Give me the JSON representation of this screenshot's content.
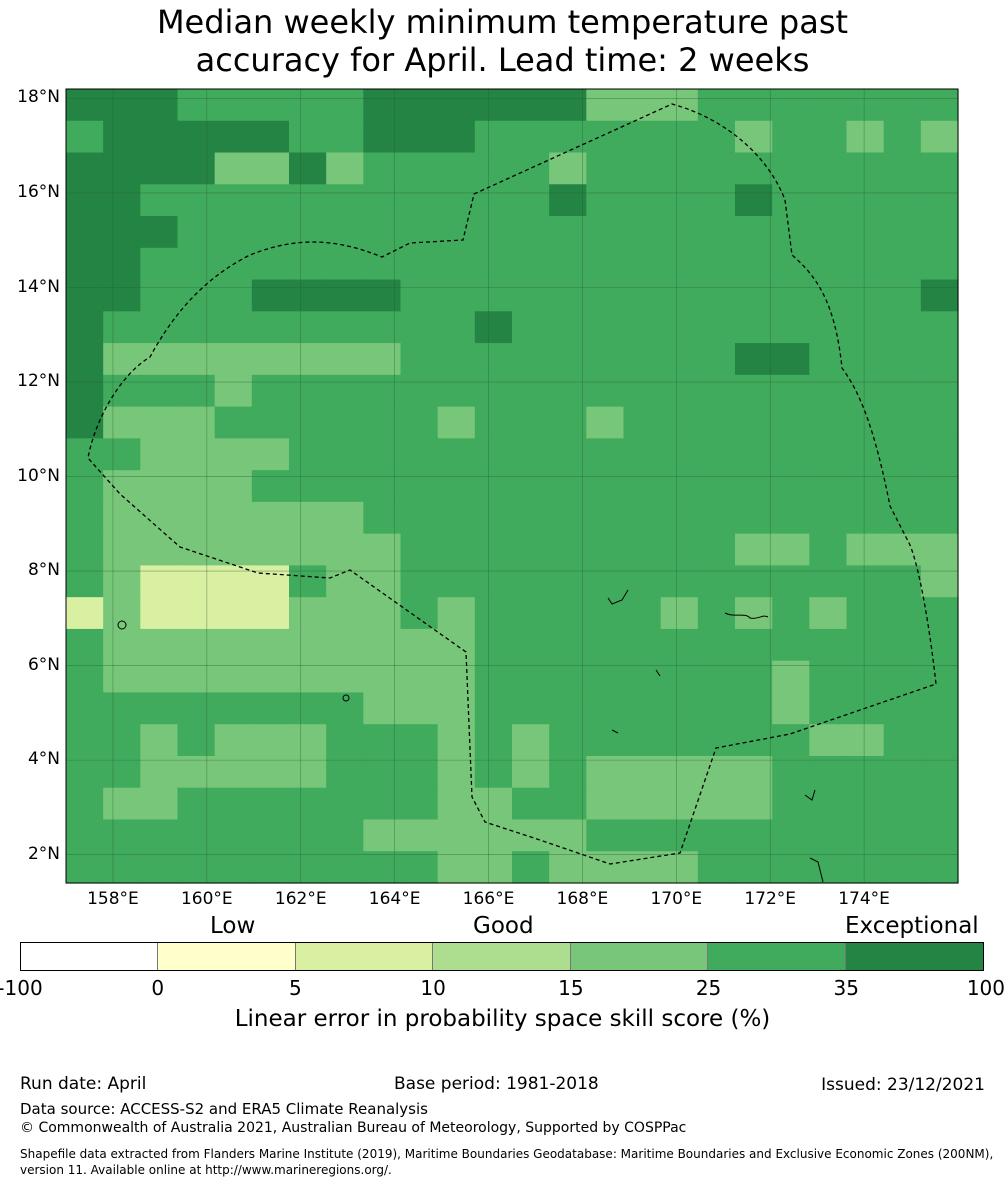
{
  "title": {
    "line1": "Median weekly minimum temperature past",
    "line2": "accuracy for April. Lead time: 2 weeks"
  },
  "axes": {
    "lat_labels": [
      "18°N",
      "16°N",
      "14°N",
      "12°N",
      "10°N",
      "8°N",
      "6°N",
      "4°N",
      "2°N"
    ],
    "lon_labels": [
      "158°E",
      "160°E",
      "162°E",
      "164°E",
      "166°E",
      "168°E",
      "170°E",
      "172°E",
      "174°E"
    ]
  },
  "legend": {
    "categories": [
      "Low",
      "Good",
      "Exceptional"
    ],
    "ticks": [
      "-100",
      "0",
      "5",
      "10",
      "15",
      "25",
      "35",
      "100"
    ],
    "colors": [
      "#ffffff",
      "#ffffcc",
      "#d9f0a3",
      "#addd8e",
      "#78c679",
      "#41ab5d",
      "#238443"
    ],
    "label": "Linear error in probability space skill score (%)"
  },
  "footer": {
    "run_date": "Run date: April",
    "base_period": "Base period: 1981-2018",
    "issued": "Issued: 23/12/2021",
    "data_source": "Data source: ACCESS-S2 and ERA5 Climate Reanalysis",
    "copyright": "© Commonwealth of Australia 2021, Australian Bureau of Meteorology, Supported by COSPPac",
    "shapefile_line1": "Shapefile data extracted from Flanders Marine Institute (2019), Maritime Boundaries Geodatabase: Maritime Boundaries and Exclusive Economic Zones (200NM),",
    "shapefile_line2": "version 11. Available online at http://www.marineregions.org/."
  },
  "map": {
    "lon_range": [
      157,
      176
    ],
    "lat_range": [
      1.4,
      18.2
    ],
    "cell_size_deg": 0.83,
    "grid": [
      "666333336666664443333333",
      "366666336663333333433434",
      "666644643333343333333333",
      "663333333333363333633333",
      "666333333333333333333333",
      "663333333333333333333333",
      "663336666333333333333336",
      "633333333336333333333333",
      "644444444333333333663333",
      "633343333333333333333333",
      "644433333343334333333333",
      "334444333333333333333333",
      "344443333333333333333333",
      "344444443333333333333333",
      "344444444333333333443444",
      "342222344333333333333334",
      "242222444343333343434333",
      "344444444443333333333333",
      "344444444443333333343333",
      "333333334443333333343333",
      "334344433343433333334433",
      "334444433343434444433333",
      "344333333344334444433333",
      "333333334444443333333333",
      "333333333344344443333333"
    ]
  }
}
